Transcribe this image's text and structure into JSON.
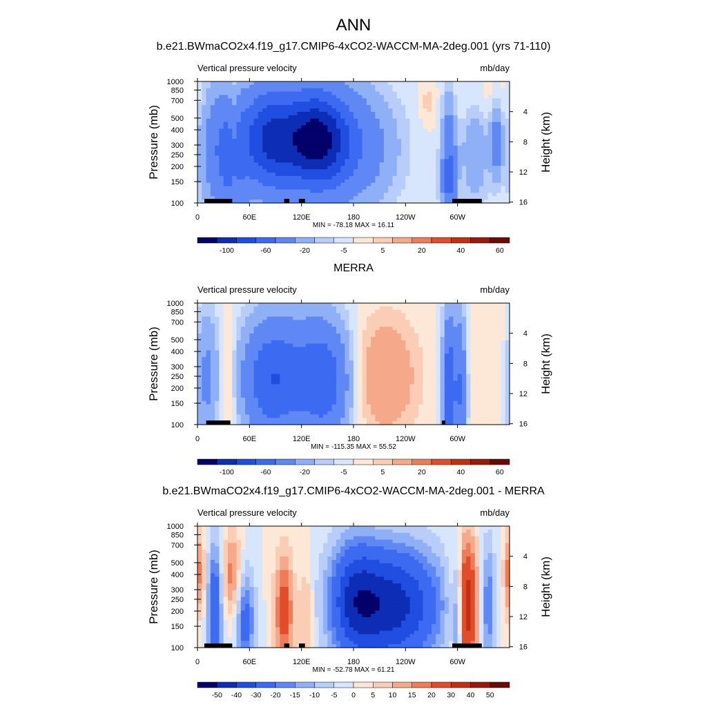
{
  "figure": {
    "season": "ANN"
  },
  "chart_data": [
    {
      "type": "heatmap",
      "title": "b.e21.BWmaCO2x4.f19_g17.CMIP6-4xCO2-WACCM-MA-2deg.001 (yrs 71-110)",
      "variable": "Vertical pressure velocity",
      "units": "mb/day",
      "ylabel": "Pressure (mb)",
      "y2label": "Height (km)",
      "x_ticks": [
        "0",
        "60E",
        "120E",
        "180",
        "120W",
        "60W"
      ],
      "y_ticks": [
        "100",
        "150",
        "200",
        "250",
        "300",
        "400",
        "500",
        "700",
        "850",
        "1000"
      ],
      "y2_ticks": [
        "16",
        "12",
        "8",
        "4"
      ],
      "ylog": true,
      "xlim": [
        0,
        360
      ],
      "ylim": [
        1000,
        100
      ],
      "stats": "MIN = -78.18  MAX =  16.11",
      "colorbar_labels": [
        "-100",
        "-60",
        "-20",
        "-5",
        "5",
        "20",
        "40",
        "60"
      ],
      "colorbar_colors": [
        "#05016b",
        "#0d2db5",
        "#1f4ee0",
        "#3c6af0",
        "#5f88f5",
        "#8fb0f7",
        "#b8cdfa",
        "#d8e6fd",
        "#fde8d8",
        "#fbcdb4",
        "#f6a98a",
        "#ef7c58",
        "#e24c2a",
        "#c23014",
        "#9a1a0a",
        "#6b0a04"
      ],
      "land_segments_deg": [
        [
          8,
          40
        ],
        [
          33,
          40
        ],
        [
          100,
          106
        ],
        [
          117,
          124
        ],
        [
          294,
          328
        ]
      ],
      "fields": [
        {
          "lon": 40,
          "p": 500,
          "v": -30,
          "sx": 12,
          "sy": 0.8
        },
        {
          "lon": 110,
          "p": 300,
          "v": -55,
          "sx": 40,
          "sy": 0.7
        },
        {
          "lon": 140,
          "p": 300,
          "v": -60,
          "sx": 22,
          "sy": 0.6
        },
        {
          "lon": 80,
          "p": 300,
          "v": -45,
          "sx": 22,
          "sy": 0.7
        },
        {
          "lon": 180,
          "p": 350,
          "v": -30,
          "sx": 35,
          "sy": 0.8
        },
        {
          "lon": 20,
          "p": 350,
          "v": -25,
          "sx": 14,
          "sy": 0.9
        },
        {
          "lon": 290,
          "p": 600,
          "v": -45,
          "sx": 6,
          "sy": 1.0
        },
        {
          "lon": 320,
          "p": 350,
          "v": -18,
          "sx": 12,
          "sy": 0.8
        },
        {
          "lon": 345,
          "p": 300,
          "v": -30,
          "sx": 5,
          "sy": 0.5
        },
        {
          "lon": 42,
          "p": 300,
          "v": 14,
          "sx": 4,
          "sy": 0.7
        },
        {
          "lon": 330,
          "p": 150,
          "v": 6,
          "sx": 30,
          "sy": 0.4
        },
        {
          "lon": 265,
          "p": 150,
          "v": 7,
          "sx": 6,
          "sy": 0.3
        }
      ]
    },
    {
      "type": "heatmap",
      "title": "MERRA",
      "variable": "Vertical pressure velocity",
      "units": "mb/day",
      "ylabel": "Pressure (mb)",
      "y2label": "Height (km)",
      "x_ticks": [
        "0",
        "60E",
        "120E",
        "180",
        "120W",
        "60W"
      ],
      "y_ticks": [
        "100",
        "150",
        "200",
        "250",
        "300",
        "400",
        "500",
        "700",
        "850",
        "1000"
      ],
      "y2_ticks": [
        "16",
        "12",
        "8",
        "4"
      ],
      "ylog": true,
      "xlim": [
        0,
        360
      ],
      "ylim": [
        1000,
        100
      ],
      "stats": "MIN = -115.35  MAX =  55.52",
      "colorbar_labels": [
        "-100",
        "-60",
        "-20",
        "-5",
        "5",
        "20",
        "40",
        "60"
      ],
      "colorbar_colors": [
        "#05016b",
        "#0d2db5",
        "#1f4ee0",
        "#3c6af0",
        "#5f88f5",
        "#8fb0f7",
        "#b8cdfa",
        "#d8e6fd",
        "#fde8d8",
        "#fbcdb4",
        "#f6a98a",
        "#ef7c58",
        "#e24c2a",
        "#c23014",
        "#9a1a0a",
        "#6b0a04"
      ],
      "land_segments_deg": [
        [
          10,
          25
        ],
        [
          25,
          33
        ],
        [
          33,
          38
        ],
        [
          282,
          286
        ]
      ],
      "fields": [
        {
          "lon": 110,
          "p": 400,
          "v": -40,
          "sx": 35,
          "sy": 0.8
        },
        {
          "lon": 150,
          "p": 450,
          "v": -35,
          "sx": 20,
          "sy": 0.8
        },
        {
          "lon": 80,
          "p": 450,
          "v": -30,
          "sx": 20,
          "sy": 0.8
        },
        {
          "lon": 10,
          "p": 400,
          "v": -25,
          "sx": 10,
          "sy": 0.9
        },
        {
          "lon": 290,
          "p": 550,
          "v": -60,
          "sx": 5,
          "sy": 1.0
        },
        {
          "lon": 303,
          "p": 500,
          "v": -40,
          "sx": 5,
          "sy": 1.0
        },
        {
          "lon": 215,
          "p": 400,
          "v": 20,
          "sx": 28,
          "sy": 0.8
        },
        {
          "lon": 35,
          "p": 500,
          "v": 12,
          "sx": 6,
          "sy": 0.9
        },
        {
          "lon": 345,
          "p": 300,
          "v": 5,
          "sx": 20,
          "sy": 0.8
        }
      ]
    },
    {
      "type": "heatmap",
      "title": "b.e21.BWmaCO2x4.f19_g17.CMIP6-4xCO2-WACCM-MA-2deg.001 - MERRA",
      "variable": "Vertical pressure velocity",
      "units": "mb/day",
      "ylabel": "Pressure (mb)",
      "y2label": "Height (km)",
      "x_ticks": [
        "0",
        "60E",
        "120E",
        "180",
        "120W",
        "60W"
      ],
      "y_ticks": [
        "100",
        "150",
        "200",
        "250",
        "300",
        "400",
        "500",
        "700",
        "850",
        "1000"
      ],
      "y2_ticks": [
        "16",
        "12",
        "8",
        "4"
      ],
      "ylog": true,
      "xlim": [
        0,
        360
      ],
      "ylim": [
        1000,
        100
      ],
      "stats": "MIN = -52.78  MAX =  61.21",
      "colorbar_labels": [
        "-50",
        "-40",
        "-30",
        "-20",
        "-15",
        "-10",
        "-5",
        "0",
        "5",
        "10",
        "15",
        "20",
        "30",
        "40",
        "50"
      ],
      "colorbar_colors": [
        "#05016b",
        "#0d2db5",
        "#1f4ee0",
        "#3c6af0",
        "#5f88f5",
        "#8fb0f7",
        "#b8cdfa",
        "#d8e6fd",
        "#fde8d8",
        "#fbcdb4",
        "#f6a98a",
        "#ef7c58",
        "#e24c2a",
        "#c23014",
        "#9a1a0a",
        "#6b0a04"
      ],
      "land_segments_deg": [
        [
          8,
          40
        ],
        [
          33,
          40
        ],
        [
          100,
          106
        ],
        [
          117,
          124
        ],
        [
          294,
          328
        ]
      ],
      "fields": [
        {
          "lon": 225,
          "p": 450,
          "v": -45,
          "sx": 40,
          "sy": 0.8
        },
        {
          "lon": 180,
          "p": 400,
          "v": -25,
          "sx": 20,
          "sy": 0.8
        },
        {
          "lon": 20,
          "p": 500,
          "v": -30,
          "sx": 6,
          "sy": 0.9
        },
        {
          "lon": 55,
          "p": 600,
          "v": -25,
          "sx": 8,
          "sy": 0.7
        },
        {
          "lon": 300,
          "p": 600,
          "v": -25,
          "sx": 4,
          "sy": 1.0
        },
        {
          "lon": 335,
          "p": 450,
          "v": -20,
          "sx": 6,
          "sy": 0.9
        },
        {
          "lon": 310,
          "p": 450,
          "v": 40,
          "sx": 10,
          "sy": 0.9
        },
        {
          "lon": 100,
          "p": 500,
          "v": 25,
          "sx": 8,
          "sy": 0.8
        },
        {
          "lon": 40,
          "p": 250,
          "v": 18,
          "sx": 8,
          "sy": 0.6
        },
        {
          "lon": 125,
          "p": 550,
          "v": 12,
          "sx": 6,
          "sy": 0.7
        },
        {
          "lon": 358,
          "p": 250,
          "v": 15,
          "sx": 4,
          "sy": 0.6
        },
        {
          "lon": 5,
          "p": 250,
          "v": 10,
          "sx": 4,
          "sy": 0.6
        }
      ]
    }
  ]
}
